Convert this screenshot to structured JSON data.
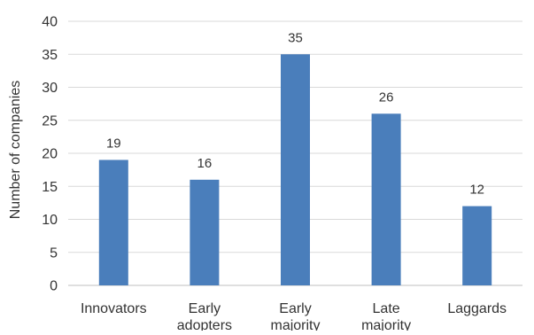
{
  "chart_data": {
    "type": "bar",
    "title": "",
    "xlabel": "",
    "ylabel": "Number of companies",
    "categories": [
      [
        "Innovators"
      ],
      [
        "Early",
        "adopters"
      ],
      [
        "Early",
        "majority"
      ],
      [
        "Late",
        "majority"
      ],
      [
        "Laggards"
      ]
    ],
    "values": [
      19,
      16,
      35,
      26,
      12
    ],
    "data_labels": [
      "19",
      "16",
      "35",
      "26",
      "12"
    ],
    "ylim": [
      0,
      40
    ],
    "yticks": [
      0,
      5,
      10,
      15,
      20,
      25,
      30,
      35,
      40
    ],
    "grid": true,
    "legend": "none",
    "colors": {
      "bar": "#4a7ebb",
      "grid": "#d9d9d9",
      "axis": "#bfbfbf",
      "text": "#333333"
    }
  }
}
